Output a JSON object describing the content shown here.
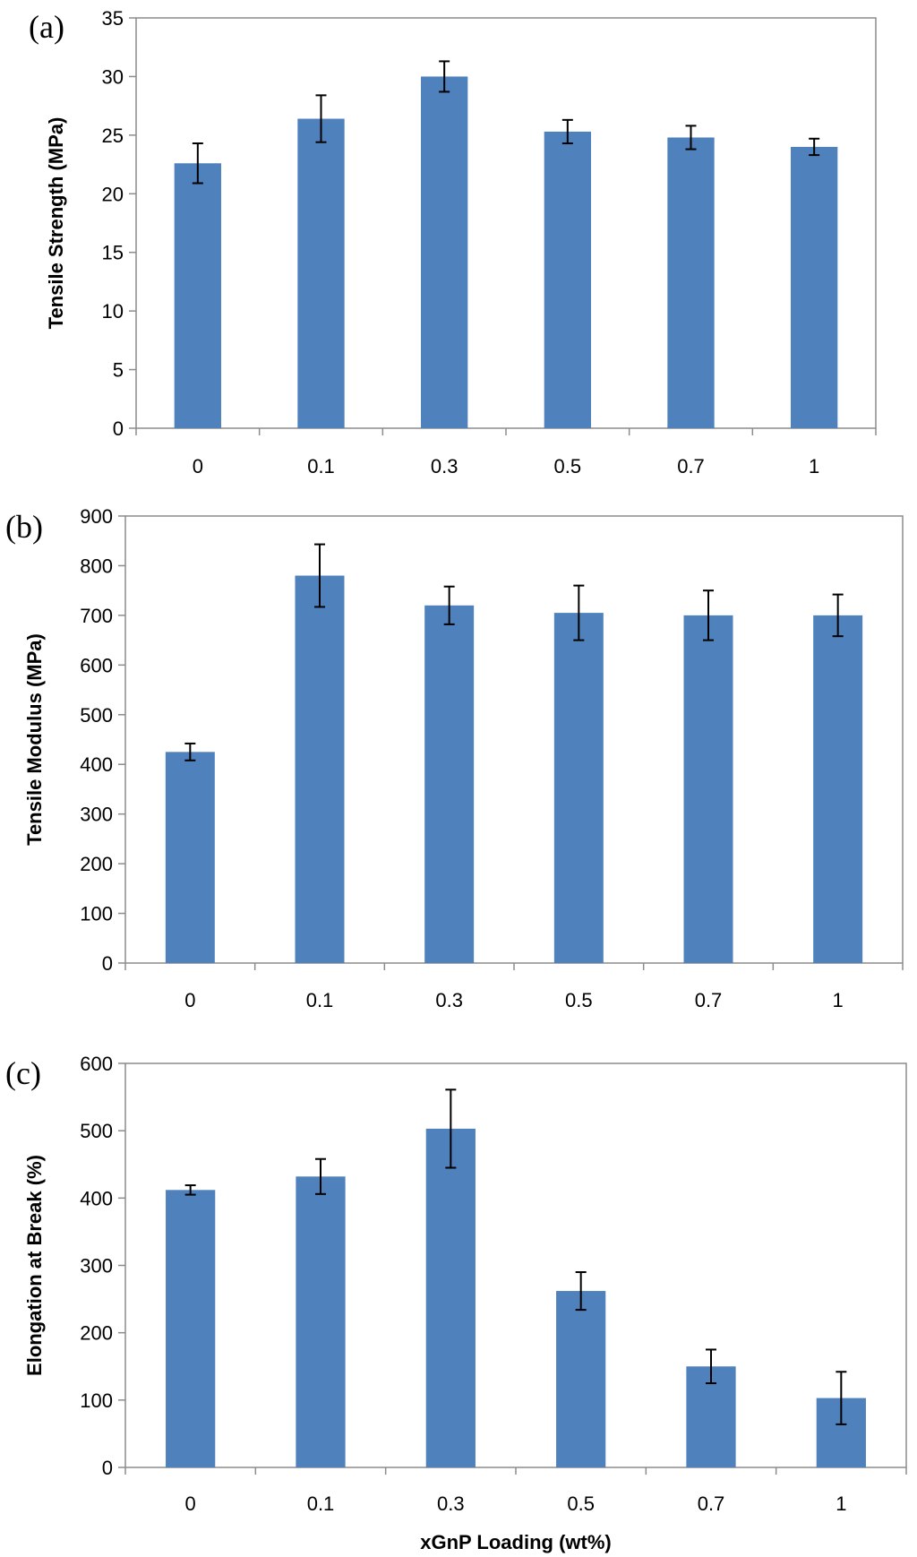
{
  "colors": {
    "bar": "#4f81bd",
    "error_bar": "#000000",
    "axis": "#8c8c8c"
  },
  "chart_data": [
    {
      "type": "bar",
      "panel_label": "(a)",
      "categories": [
        "0",
        "0.1",
        "0.3",
        "0.5",
        "0.7",
        "1"
      ],
      "values": [
        22.6,
        26.4,
        30.0,
        25.3,
        24.8,
        24.0
      ],
      "errors": [
        1.7,
        2.0,
        1.3,
        1.0,
        1.0,
        0.7
      ],
      "title": "",
      "xlabel": "",
      "ylabel": "Tensile Strength (MPa)",
      "ylim": [
        0,
        35
      ],
      "yticks": [
        0,
        5,
        10,
        15,
        20,
        25,
        30,
        35
      ],
      "grid": false
    },
    {
      "type": "bar",
      "panel_label": "(b)",
      "categories": [
        "0",
        "0.1",
        "0.3",
        "0.5",
        "0.7",
        "1"
      ],
      "values": [
        425,
        780,
        720,
        705,
        700,
        700
      ],
      "errors": [
        17,
        63,
        38,
        55,
        50,
        42
      ],
      "title": "",
      "xlabel": "",
      "ylabel": "Tensile Modulus (MPa)",
      "ylim": [
        0,
        900
      ],
      "yticks": [
        0,
        100,
        200,
        300,
        400,
        500,
        600,
        700,
        800,
        900
      ],
      "grid": false
    },
    {
      "type": "bar",
      "panel_label": "(c)",
      "categories": [
        "0",
        "0.1",
        "0.3",
        "0.5",
        "0.7",
        "1"
      ],
      "values": [
        412,
        432,
        503,
        262,
        150,
        103
      ],
      "errors": [
        7,
        26,
        58,
        28,
        25,
        39
      ],
      "title": "",
      "xlabel": "xGnP Loading (wt%)",
      "ylabel": "Elongation at Break (%)",
      "ylim": [
        0,
        600
      ],
      "yticks": [
        0,
        100,
        200,
        300,
        400,
        500,
        600
      ],
      "grid": false
    }
  ]
}
